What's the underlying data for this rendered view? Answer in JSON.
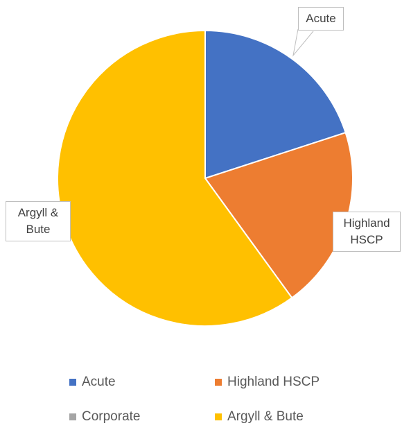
{
  "chart_data": {
    "type": "pie",
    "categories": [
      "Acute",
      "Highland HSCP",
      "Corporate",
      "Argyll & Bute"
    ],
    "values": [
      20,
      20,
      0,
      60
    ],
    "colors": [
      "#4472c4",
      "#ed7d31",
      "#a5a5a5",
      "#ffc000"
    ],
    "legend": "bottom"
  }
}
